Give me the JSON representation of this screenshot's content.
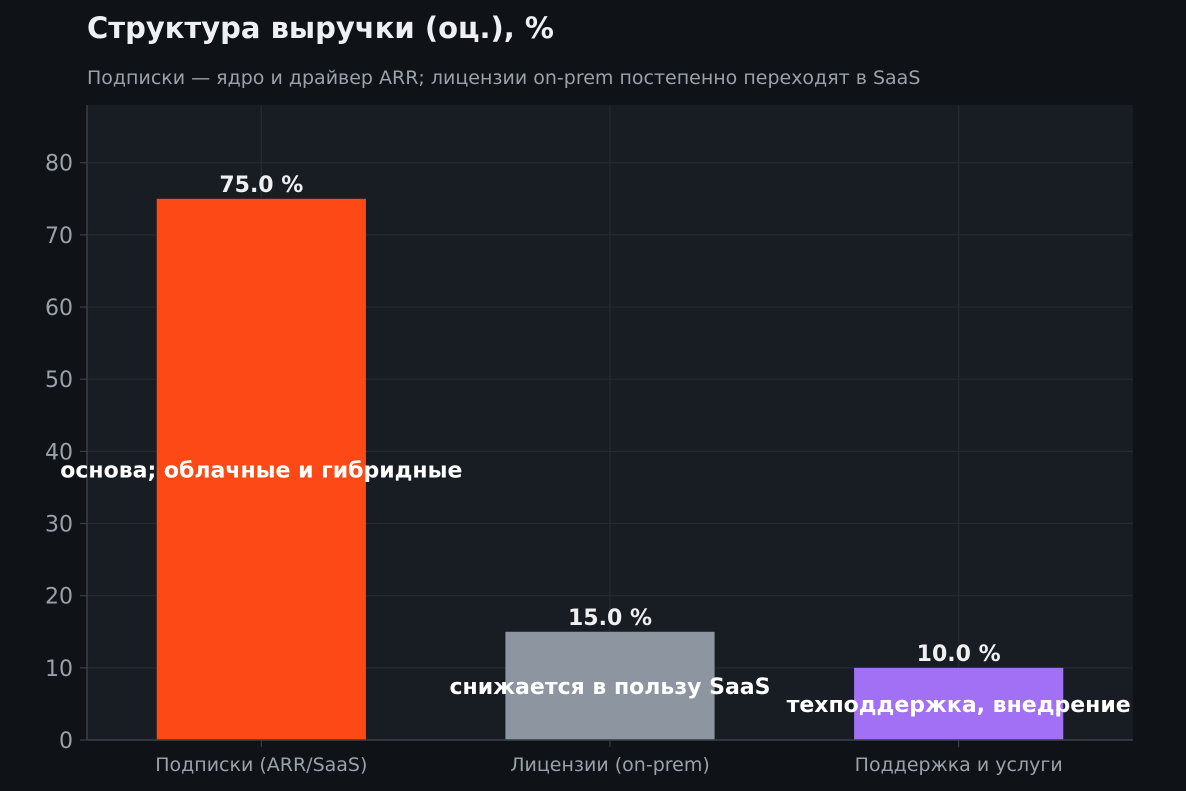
{
  "chart_data": {
    "type": "bar",
    "title": "Структура выручки (оц.), %",
    "subtitle": "Подписки — ядро и драйвер ARR; лицензии on-prem постепенно переходят в SaaS",
    "xlabel": "",
    "ylabel": "",
    "ylim": [
      0,
      88
    ],
    "yticks": [
      0,
      10,
      20,
      30,
      40,
      50,
      60,
      70,
      80
    ],
    "grid": true,
    "categories": [
      "Подписки (ARR/SaaS)",
      "Лицензии (on-prem)",
      "Поддержка и услуги"
    ],
    "values": [
      75.0,
      15.0,
      10.0
    ],
    "value_labels": [
      "75.0 %",
      "15.0 %",
      "10.0 %"
    ],
    "annotations": [
      "основа; облачные и гибридные",
      "снижается в пользу SaaS",
      "техподдержка, внедрение"
    ],
    "colors": [
      "#fc4916",
      "#8d96a0",
      "#a170f4"
    ]
  },
  "theme": {
    "background": "#0f1317",
    "plot_background": "#181c23",
    "grid_color": "#262b33",
    "axis_color": "#3a3f47"
  }
}
